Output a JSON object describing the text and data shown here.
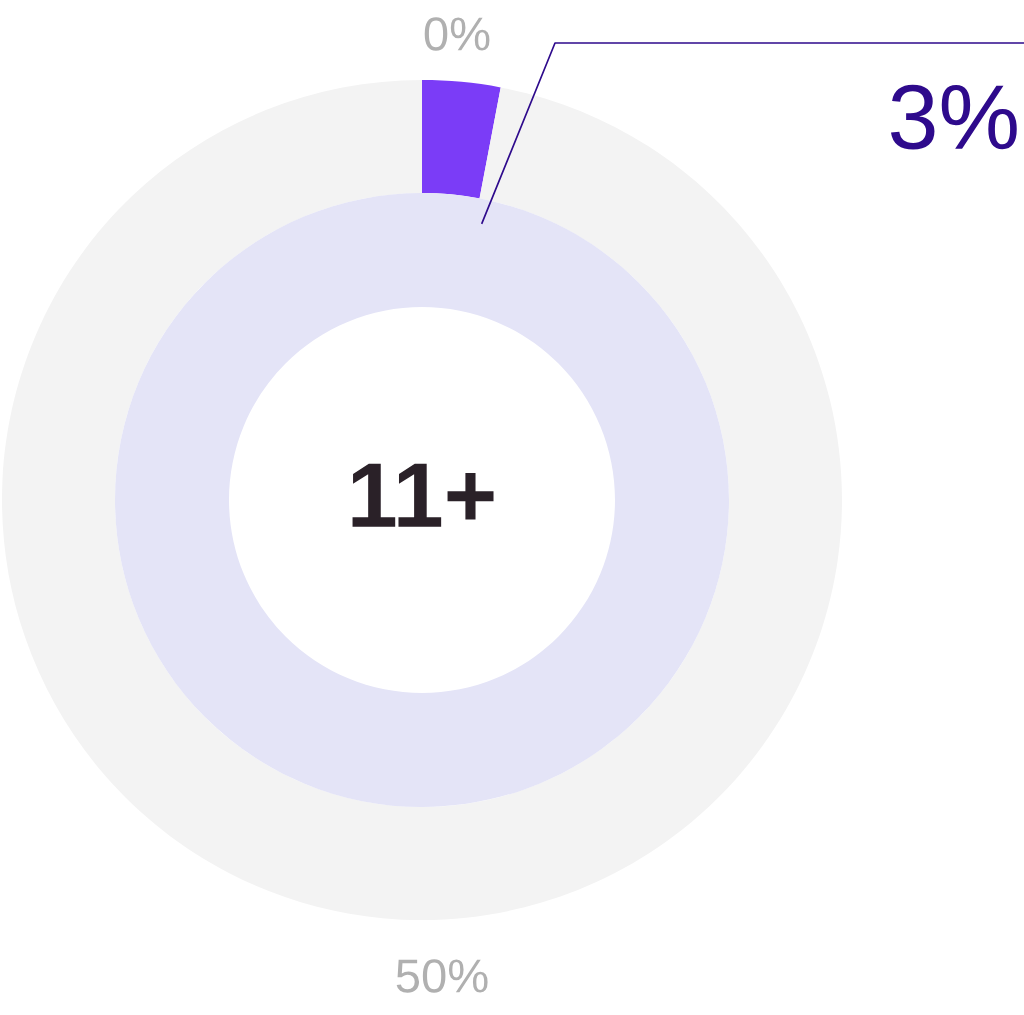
{
  "chart_data": {
    "type": "donut",
    "categories": [
      null,
      null
    ],
    "values": [
      3,
      97
    ],
    "colors": [
      "#7b3cf7",
      "#f3f3f3"
    ],
    "value_labels": [
      "3%",
      null
    ],
    "annotations": [
      "0%",
      "50%",
      "11+"
    ]
  }
}
